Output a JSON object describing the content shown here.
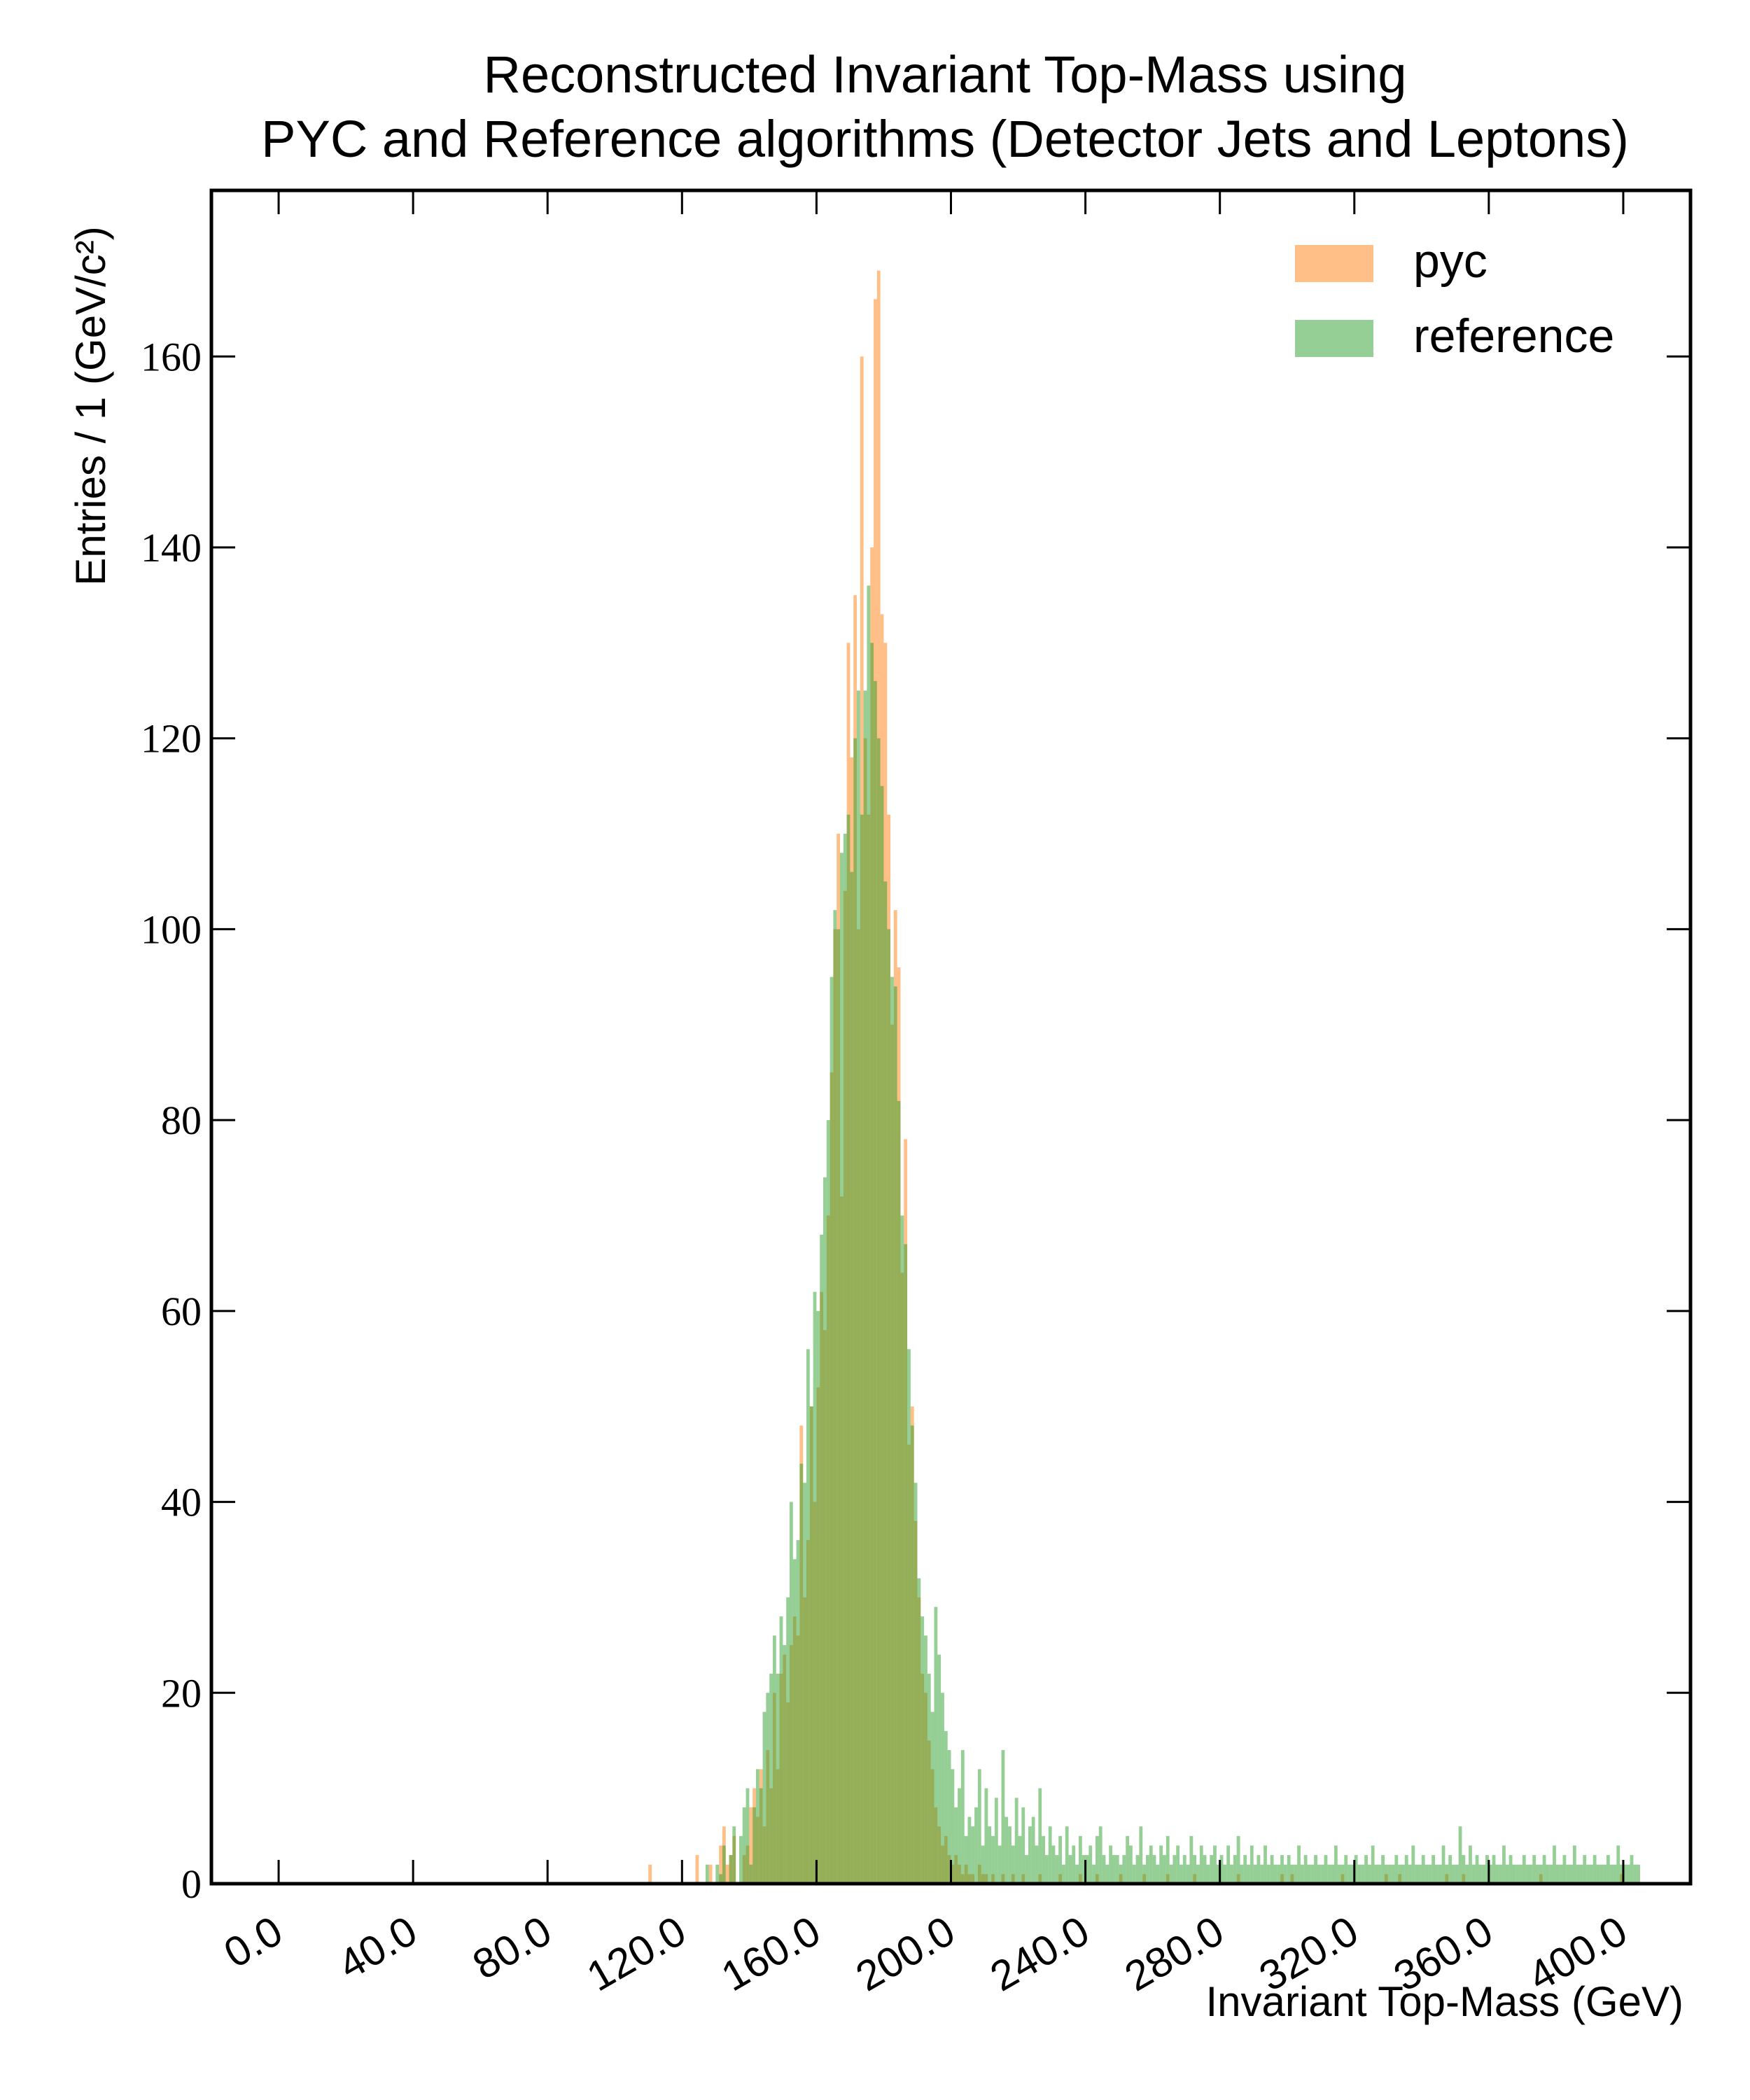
{
  "chart_data": {
    "type": "histogram",
    "title": [
      "Reconstructed Invariant Top-Mass using",
      "PYC and Reference algorithms (Detector Jets and Leptons)"
    ],
    "xlabel": "Invariant Top-Mass (GeV)",
    "ylabel": "Entries / 1 (GeV/c²)",
    "bins": [
      105,
      106,
      107,
      108,
      109,
      110,
      111,
      112,
      113,
      114,
      115,
      116,
      117,
      118,
      119,
      120,
      121,
      122,
      123,
      124,
      125,
      126,
      127,
      128,
      129,
      130,
      131,
      132,
      133,
      134,
      135,
      136,
      137,
      138,
      139,
      140,
      141,
      142,
      143,
      144,
      145,
      146,
      147,
      148,
      149,
      150,
      151,
      152,
      153,
      154,
      155,
      156,
      157,
      158,
      159,
      160,
      161,
      162,
      163,
      164,
      165,
      166,
      167,
      168,
      169,
      170,
      171,
      172,
      173,
      174,
      175,
      176,
      177,
      178,
      179,
      180,
      181,
      182,
      183,
      184,
      185,
      186,
      187,
      188,
      189,
      190,
      191,
      192,
      193,
      194,
      195,
      196,
      197,
      198,
      199,
      200,
      201,
      202,
      203,
      204,
      205,
      206,
      207,
      208,
      209,
      210,
      211,
      212,
      213,
      214,
      215,
      216,
      217,
      218,
      219,
      220,
      221,
      222,
      223,
      224,
      225,
      226,
      227,
      228,
      229,
      230,
      231,
      232,
      233,
      234,
      235,
      236,
      237,
      238,
      239,
      240,
      241,
      242,
      243,
      244,
      245,
      246,
      247,
      248,
      249,
      250,
      251,
      252,
      253,
      254,
      255,
      256,
      257,
      258,
      259,
      260,
      261,
      262,
      263,
      264,
      265,
      266,
      267,
      268,
      269,
      270,
      271,
      272,
      273,
      274,
      275,
      276,
      277,
      278,
      279,
      280,
      281,
      282,
      283,
      284,
      285,
      286,
      287,
      288,
      289,
      290,
      291,
      292,
      293,
      294,
      295,
      296,
      297,
      298,
      299,
      300,
      301,
      302,
      303,
      304,
      305,
      306,
      307,
      308,
      309,
      310,
      311,
      312,
      313,
      314,
      315,
      316,
      317,
      318,
      319,
      320,
      321,
      322,
      323,
      324,
      325,
      326,
      327,
      328,
      329,
      330,
      331,
      332,
      333,
      334,
      335,
      336,
      337,
      338,
      339,
      340,
      341,
      342,
      343,
      344,
      345,
      346,
      347,
      348,
      349,
      350,
      351,
      352,
      353,
      354,
      355,
      356,
      357,
      358,
      359,
      360,
      361,
      362,
      363,
      364,
      365,
      366,
      367,
      368,
      369,
      370,
      371,
      372,
      373,
      374,
      375,
      376,
      377,
      378,
      379,
      380,
      381,
      382,
      383,
      384,
      385,
      386,
      387,
      388,
      389,
      390,
      391,
      392,
      393,
      394,
      395,
      396,
      397,
      398,
      399,
      400,
      401,
      402,
      403,
      404,
      405
    ],
    "series": [
      {
        "name": "pyc",
        "color": "#ff7f0e",
        "alpha": 0.5,
        "values": [
          0,
          0,
          0,
          0,
          0,
          2,
          0,
          0,
          0,
          0,
          0,
          0,
          0,
          0,
          0,
          0,
          0,
          0,
          0,
          3,
          0,
          0,
          0,
          2,
          0,
          0,
          4,
          6,
          2,
          3,
          5,
          0,
          0,
          3,
          4,
          8,
          10,
          7,
          12,
          6,
          14,
          10,
          20,
          12,
          22,
          24,
          19,
          25,
          28,
          26,
          48,
          30,
          36,
          50,
          40,
          52,
          62,
          58,
          70,
          85,
          100,
          110,
          72,
          104,
          130,
          118,
          135,
          100,
          160,
          120,
          112,
          140,
          166,
          169,
          133,
          130,
          112,
          90,
          102,
          96,
          64,
          78,
          46,
          50,
          38,
          30,
          22,
          20,
          15,
          12,
          8,
          6,
          4,
          5,
          3,
          2,
          3,
          2,
          1,
          2,
          1,
          1,
          0,
          2,
          1,
          1,
          0,
          1,
          0,
          0,
          1,
          0,
          0,
          1,
          0,
          0,
          1,
          0,
          0,
          0,
          0,
          1,
          0,
          0,
          0,
          0,
          0,
          1,
          0,
          0,
          0,
          0,
          0,
          1,
          0,
          0,
          0,
          0,
          1,
          0,
          0,
          0,
          0,
          0,
          0,
          1,
          0,
          0,
          0,
          0,
          0,
          0,
          1,
          0,
          0,
          0,
          0,
          0,
          0,
          1,
          0,
          0,
          0,
          0,
          0,
          0,
          0,
          1,
          0,
          0,
          0,
          0,
          0,
          0,
          0,
          0,
          0,
          0,
          0,
          0,
          1,
          0,
          0,
          0,
          0,
          0,
          0,
          0,
          0,
          0,
          0,
          0,
          0,
          1,
          0,
          0,
          1,
          0,
          0,
          0,
          0,
          0,
          0,
          0,
          0,
          0,
          0,
          0,
          0,
          0,
          0,
          1,
          0,
          0,
          0,
          0,
          0,
          0,
          0,
          0,
          0,
          0,
          0,
          0,
          1,
          0,
          0,
          0,
          1,
          0,
          0,
          0,
          0,
          0,
          0,
          0,
          0,
          0,
          0,
          0,
          0,
          0,
          1,
          0,
          0,
          0,
          0,
          1,
          0,
          0,
          0,
          0,
          0,
          0,
          0,
          0,
          0,
          0,
          0,
          0,
          0,
          0,
          0,
          0,
          0,
          0,
          0,
          0,
          0,
          0,
          1,
          0,
          0,
          0,
          0,
          0,
          0,
          0,
          0,
          0,
          0,
          0,
          0,
          0,
          0,
          0,
          0,
          0,
          0,
          0,
          0,
          0,
          0,
          0,
          1,
          0,
          0,
          0,
          0,
          0
        ]
      },
      {
        "name": "reference",
        "color": "#2ca02c",
        "alpha": 0.5,
        "values": [
          0,
          0,
          0,
          0,
          0,
          0,
          0,
          0,
          0,
          0,
          0,
          0,
          0,
          0,
          0,
          0,
          0,
          0,
          0,
          0,
          0,
          0,
          2,
          0,
          0,
          2,
          1,
          4,
          0,
          3,
          6,
          0,
          5,
          8,
          10,
          2,
          8,
          12,
          10,
          18,
          20,
          22,
          26,
          22,
          28,
          25,
          30,
          40,
          34,
          36,
          44,
          42,
          56,
          50,
          62,
          60,
          68,
          74,
          80,
          95,
          102,
          100,
          108,
          110,
          112,
          106,
          120,
          125,
          112,
          125,
          136,
          130,
          126,
          120,
          115,
          105,
          100,
          95,
          94,
          82,
          70,
          67,
          56,
          48,
          42,
          32,
          28,
          26,
          22,
          18,
          29,
          24,
          20,
          16,
          14,
          12,
          8,
          10,
          14,
          5,
          7,
          6,
          8,
          12,
          4,
          10,
          6,
          5,
          9,
          4,
          14,
          7,
          6,
          4,
          9,
          5,
          8,
          3,
          6,
          7,
          4,
          10,
          5,
          3,
          6,
          4,
          3,
          5,
          2,
          6,
          3,
          4,
          2,
          5,
          3,
          3,
          4,
          2,
          5,
          6,
          3,
          2,
          4,
          3,
          3,
          2,
          3,
          5,
          4,
          2,
          3,
          6,
          2,
          3,
          4,
          3,
          2,
          4,
          3,
          5,
          2,
          3,
          4,
          2,
          3,
          2,
          5,
          3,
          2,
          4,
          3,
          2,
          3,
          4,
          2,
          3,
          2,
          4,
          2,
          3,
          5,
          2,
          3,
          2,
          4,
          2,
          3,
          2,
          4,
          2,
          3,
          2,
          2,
          3,
          2,
          3,
          2,
          2,
          4,
          2,
          3,
          2,
          2,
          3,
          2,
          2,
          3,
          2,
          2,
          4,
          2,
          2,
          3,
          2,
          2,
          3,
          2,
          2,
          3,
          2,
          4,
          2,
          2,
          3,
          2,
          2,
          2,
          3,
          2,
          2,
          3,
          2,
          4,
          2,
          2,
          3,
          2,
          2,
          3,
          2,
          2,
          4,
          2,
          3,
          2,
          2,
          6,
          3,
          2,
          4,
          2,
          3,
          2,
          2,
          3,
          2,
          3,
          2,
          2,
          4,
          2,
          3,
          2,
          2,
          2,
          3,
          2,
          2,
          3,
          2,
          2,
          3,
          2,
          2,
          4,
          2,
          2,
          3,
          2,
          2,
          4,
          2,
          2,
          3,
          2,
          2,
          3,
          2,
          2,
          2,
          3,
          2,
          2,
          4,
          2,
          2,
          2,
          3,
          2,
          2
        ]
      }
    ],
    "xlim": [
      -20,
      420
    ],
    "ylim": [
      0,
      177.4
    ],
    "xticks": [
      {
        "value": 0,
        "label": "0.0"
      },
      {
        "value": 40,
        "label": "40.0"
      },
      {
        "value": 80,
        "label": "80.0"
      },
      {
        "value": 120,
        "label": "120.0"
      },
      {
        "value": 160,
        "label": "160.0"
      },
      {
        "value": 200,
        "label": "200.0"
      },
      {
        "value": 240,
        "label": "240.0"
      },
      {
        "value": 280,
        "label": "280.0"
      },
      {
        "value": 320,
        "label": "320.0"
      },
      {
        "value": 360,
        "label": "360.0"
      },
      {
        "value": 400,
        "label": "400.0"
      }
    ],
    "yticks": [
      0,
      20,
      40,
      60,
      80,
      100,
      120,
      140,
      160
    ],
    "legend": "upper right",
    "grid": false
  }
}
